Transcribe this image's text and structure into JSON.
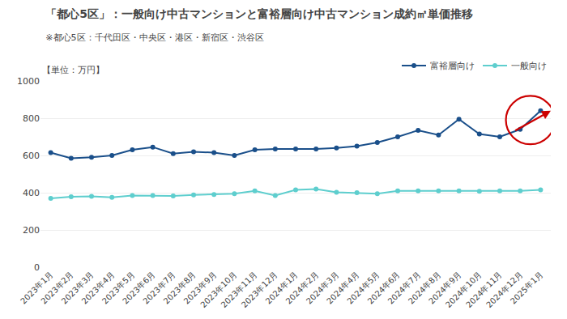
{
  "chart_data": {
    "type": "line",
    "title": "「都心5区」：一般向け中古マンションと富裕層向け中古マンション成約㎡単価推移",
    "subtitle": "※都心5区：千代田区・中央区・港区・新宿区・渋谷区",
    "ylabel": "【単位：万円】",
    "categories": [
      "2023年1月",
      "2023年2月",
      "2023年3月",
      "2023年4月",
      "2023年5月",
      "2023年6月",
      "2023年7月",
      "2023年8月",
      "2023年9月",
      "2023年10月",
      "2023年11月",
      "2023年12月",
      "2024年1月",
      "2024年2月",
      "2024年3月",
      "2024年4月",
      "2024年5月",
      "2024年6月",
      "2024年7月",
      "2024年8月",
      "2024年9月",
      "2024年10月",
      "2024年11月",
      "2024年12月",
      "2025年1月"
    ],
    "series": [
      {
        "name": "富裕層向け",
        "color": "#1a4f8a",
        "marker": "circle",
        "line_style": "solid",
        "values": [
          615,
          585,
          590,
          600,
          630,
          645,
          610,
          620,
          615,
          600,
          630,
          635,
          635,
          635,
          640,
          650,
          670,
          700,
          735,
          710,
          795,
          715,
          700,
          740,
          840
        ]
      },
      {
        "name": "一般向け",
        "color": "#5ecece",
        "marker": "circle",
        "line_style": "solid",
        "values": [
          370,
          378,
          380,
          375,
          385,
          385,
          383,
          388,
          390,
          395,
          410,
          385,
          415,
          420,
          402,
          400,
          395,
          410,
          410,
          410,
          410,
          408,
          410,
          410,
          415
        ]
      }
    ],
    "ylim": [
      0,
      1000
    ],
    "yticks": [
      0,
      200,
      400,
      600,
      800,
      1000
    ],
    "grid": true,
    "legend": "top"
  }
}
